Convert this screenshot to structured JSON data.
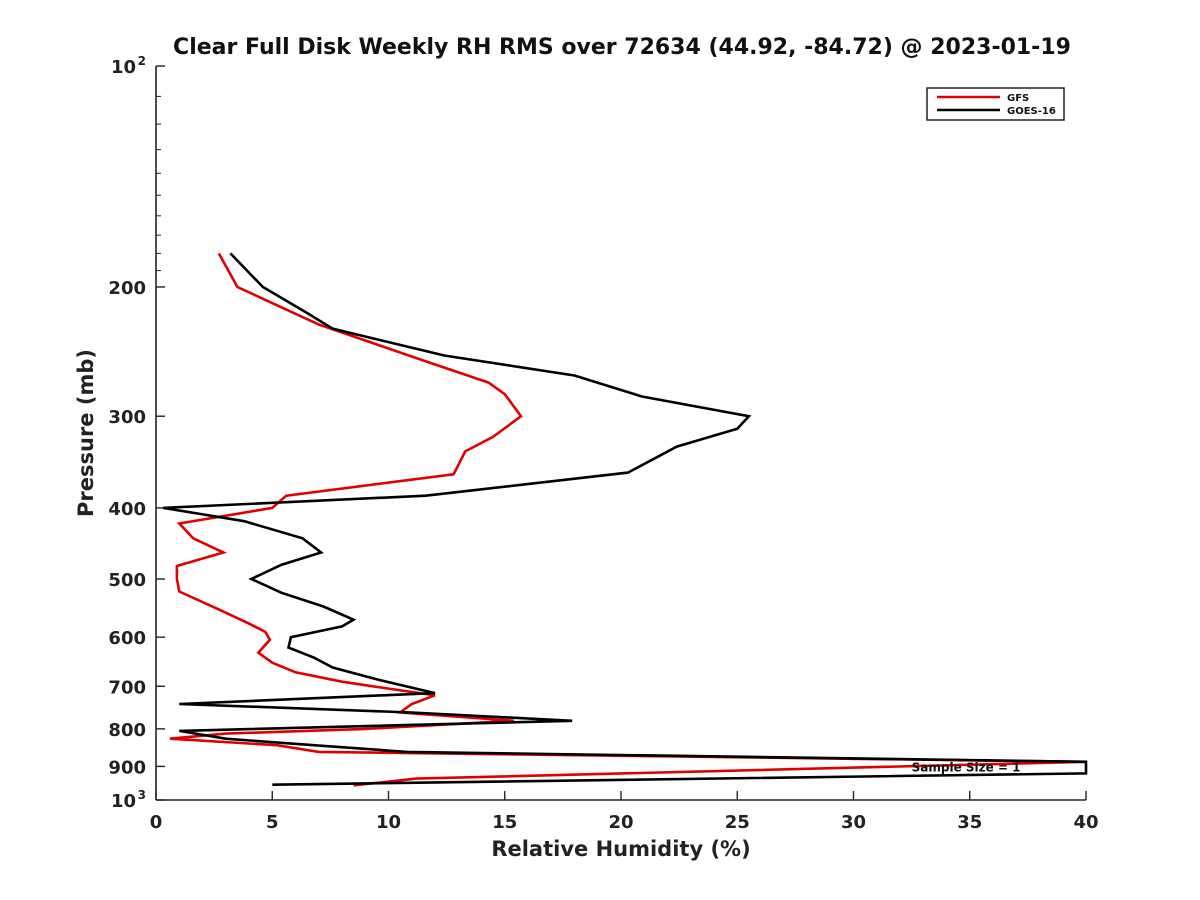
{
  "chart_data": {
    "type": "line",
    "title": "Clear Full Disk Weekly RH RMS over 72634 (44.92, -84.72) @ 2023-01-19",
    "xlabel": "Relative Humidity (%)",
    "ylabel": "Pressure (mb)",
    "xlim": [
      0,
      40
    ],
    "ylim": [
      1000,
      100
    ],
    "yscale": "log",
    "x_ticks": [
      "0",
      "5",
      "10",
      "15",
      "20",
      "25",
      "30",
      "35",
      "40"
    ],
    "y_ticks": [
      {
        "value": 100,
        "label": "10",
        "sup": "2"
      },
      {
        "value": 200,
        "label": "200",
        "sup": ""
      },
      {
        "value": 300,
        "label": "300",
        "sup": ""
      },
      {
        "value": 400,
        "label": "400",
        "sup": ""
      },
      {
        "value": 500,
        "label": "500",
        "sup": ""
      },
      {
        "value": 600,
        "label": "600",
        "sup": ""
      },
      {
        "value": 700,
        "label": "700",
        "sup": ""
      },
      {
        "value": 800,
        "label": "800",
        "sup": ""
      },
      {
        "value": 900,
        "label": "900",
        "sup": ""
      },
      {
        "value": 1000,
        "label": "10",
        "sup": "3"
      }
    ],
    "legend_position": "top-right",
    "series": [
      {
        "name": "GFS",
        "color": "#e00000",
        "points": [
          [
            2.7,
            180
          ],
          [
            3.5,
            200
          ],
          [
            7.0,
            225
          ],
          [
            11.2,
            250
          ],
          [
            14.3,
            270
          ],
          [
            15.0,
            280
          ],
          [
            15.7,
            300
          ],
          [
            14.5,
            320
          ],
          [
            13.3,
            335
          ],
          [
            12.8,
            360
          ],
          [
            5.6,
            385
          ],
          [
            5.0,
            400
          ],
          [
            1.0,
            420
          ],
          [
            1.6,
            440
          ],
          [
            2.9,
            460
          ],
          [
            0.9,
            480
          ],
          [
            0.9,
            500
          ],
          [
            1.0,
            520
          ],
          [
            2.7,
            550
          ],
          [
            4.0,
            575
          ],
          [
            4.7,
            590
          ],
          [
            4.9,
            605
          ],
          [
            4.4,
            630
          ],
          [
            5.0,
            650
          ],
          [
            6.0,
            670
          ],
          [
            8.0,
            690
          ],
          [
            10.0,
            705
          ],
          [
            12.0,
            720
          ],
          [
            11.0,
            740
          ],
          [
            10.5,
            760
          ],
          [
            15.4,
            780
          ],
          [
            9.0,
            800
          ],
          [
            3.0,
            812
          ],
          [
            0.6,
            825
          ],
          [
            5.2,
            842
          ],
          [
            7.0,
            860
          ],
          [
            40.0,
            887
          ],
          [
            11.2,
            935
          ],
          [
            8.5,
            955
          ]
        ]
      },
      {
        "name": "GOES-16",
        "color": "#000000",
        "points": [
          [
            3.2,
            180
          ],
          [
            4.6,
            200
          ],
          [
            6.5,
            217
          ],
          [
            7.6,
            228
          ],
          [
            12.4,
            248
          ],
          [
            18.0,
            264
          ],
          [
            20.9,
            282
          ],
          [
            25.5,
            300
          ],
          [
            25.0,
            312
          ],
          [
            22.4,
            330
          ],
          [
            20.3,
            358
          ],
          [
            11.6,
            385
          ],
          [
            0.3,
            400
          ],
          [
            3.8,
            417
          ],
          [
            6.3,
            440
          ],
          [
            7.1,
            460
          ],
          [
            5.4,
            478
          ],
          [
            4.1,
            500
          ],
          [
            5.4,
            522
          ],
          [
            7.2,
            545
          ],
          [
            8.5,
            568
          ],
          [
            8.0,
            580
          ],
          [
            5.8,
            600
          ],
          [
            5.7,
            620
          ],
          [
            6.8,
            640
          ],
          [
            7.6,
            660
          ],
          [
            9.5,
            685
          ],
          [
            12.0,
            715
          ],
          [
            1.0,
            740
          ],
          [
            11.0,
            760
          ],
          [
            17.9,
            780
          ],
          [
            1.0,
            805
          ],
          [
            3.0,
            825
          ],
          [
            7.0,
            843
          ],
          [
            10.8,
            860
          ],
          [
            40.0,
            887
          ],
          [
            40.0,
            920
          ],
          [
            5.0,
            953
          ]
        ]
      }
    ],
    "annotations": [
      {
        "text": "Sample Size = 1",
        "x": 32.5,
        "y": 900
      }
    ]
  }
}
